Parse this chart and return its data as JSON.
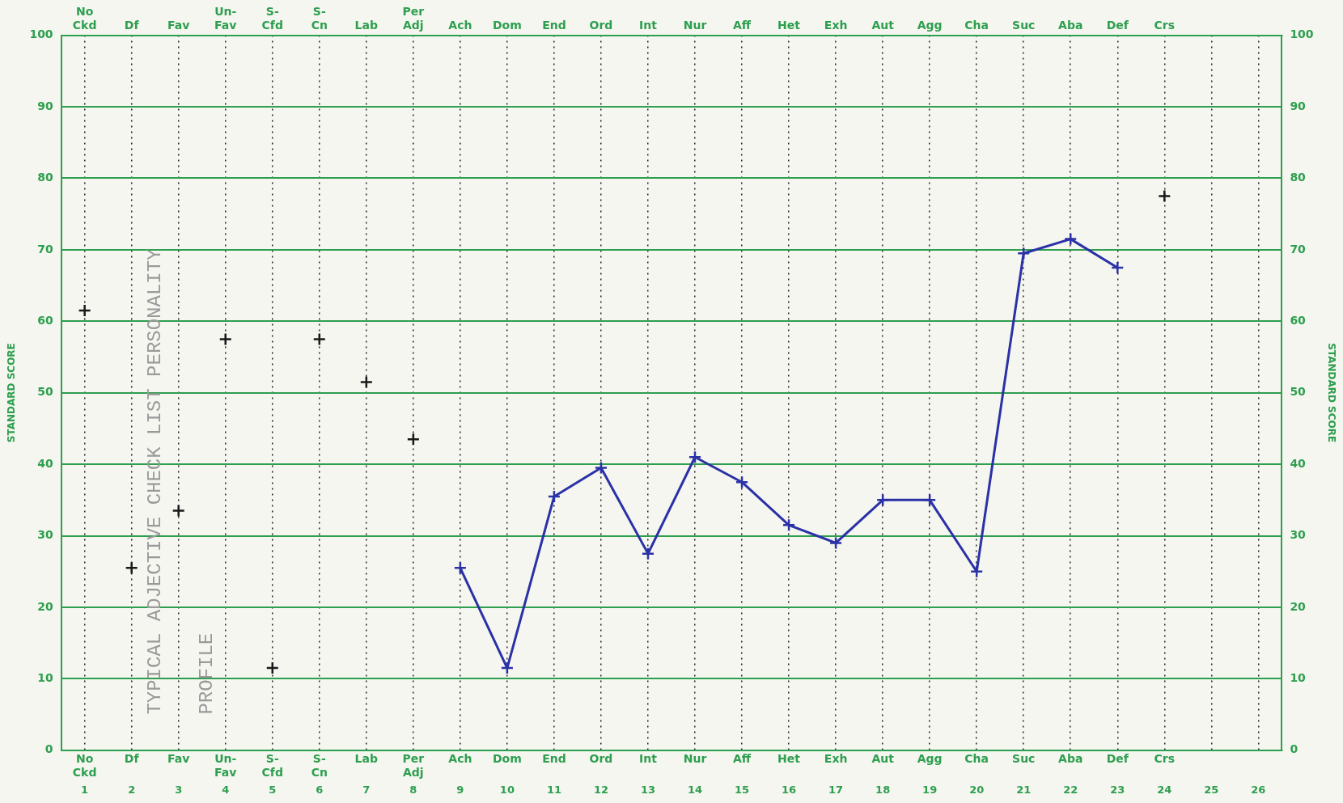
{
  "chart_data": {
    "type": "line",
    "ylabel": "STANDARD SCORE",
    "y2label": "STANDARD SCORE",
    "categories": [
      "No Ckd",
      "Df",
      "Fav",
      "Un- Fav",
      "S- Cfd",
      "S- Cn",
      "Lab",
      "Per Adj",
      "Ach",
      "Dom",
      "End",
      "Ord",
      "Int",
      "Nur",
      "Aff",
      "Het",
      "Exh",
      "Aut",
      "Agg",
      "Cha",
      "Suc",
      "Aba",
      "Def",
      "Crs",
      null,
      null
    ],
    "series": [
      {
        "type": "scatter",
        "color": "#1a1a1a",
        "x": [
          "No Ckd",
          "Df",
          "Fav",
          "Un- Fav",
          "S- Cfd",
          "S- Cn",
          "Lab",
          "Per Adj",
          "Crs"
        ],
        "values": [
          61.5,
          25.5,
          33.5,
          57.5,
          11.5,
          57.5,
          51.5,
          43.5,
          77.5
        ]
      },
      {
        "color": "#2b31a6",
        "values": [
          null,
          null,
          null,
          null,
          null,
          null,
          null,
          null,
          25.5,
          11.5,
          35.5,
          39.5,
          27.5,
          41,
          37.5,
          31.5,
          29,
          35,
          35,
          25,
          69.5,
          71.5,
          67.5,
          null,
          null,
          null
        ]
      }
    ],
    "ylim": [
      0,
      100
    ],
    "yticks": [
      0,
      10,
      20,
      30,
      40,
      50,
      60,
      70,
      80,
      90,
      100
    ],
    "y2lim": [
      0,
      100
    ],
    "y2ticks": [
      0,
      10,
      20,
      30,
      40,
      50,
      60,
      70,
      80,
      90,
      100
    ],
    "grid": true,
    "legend": false,
    "marker": "cross",
    "line_style": "solid",
    "annotations": [
      "TYPICAL ADJECTIVE CHECK LIST PERSONALITY",
      "PROFILE",
      "1 2 3 4 5 6 7 8 9 10 11 12 13 14 15 16 17 18 19 20 21 22 23 24 25 26"
    ]
  }
}
